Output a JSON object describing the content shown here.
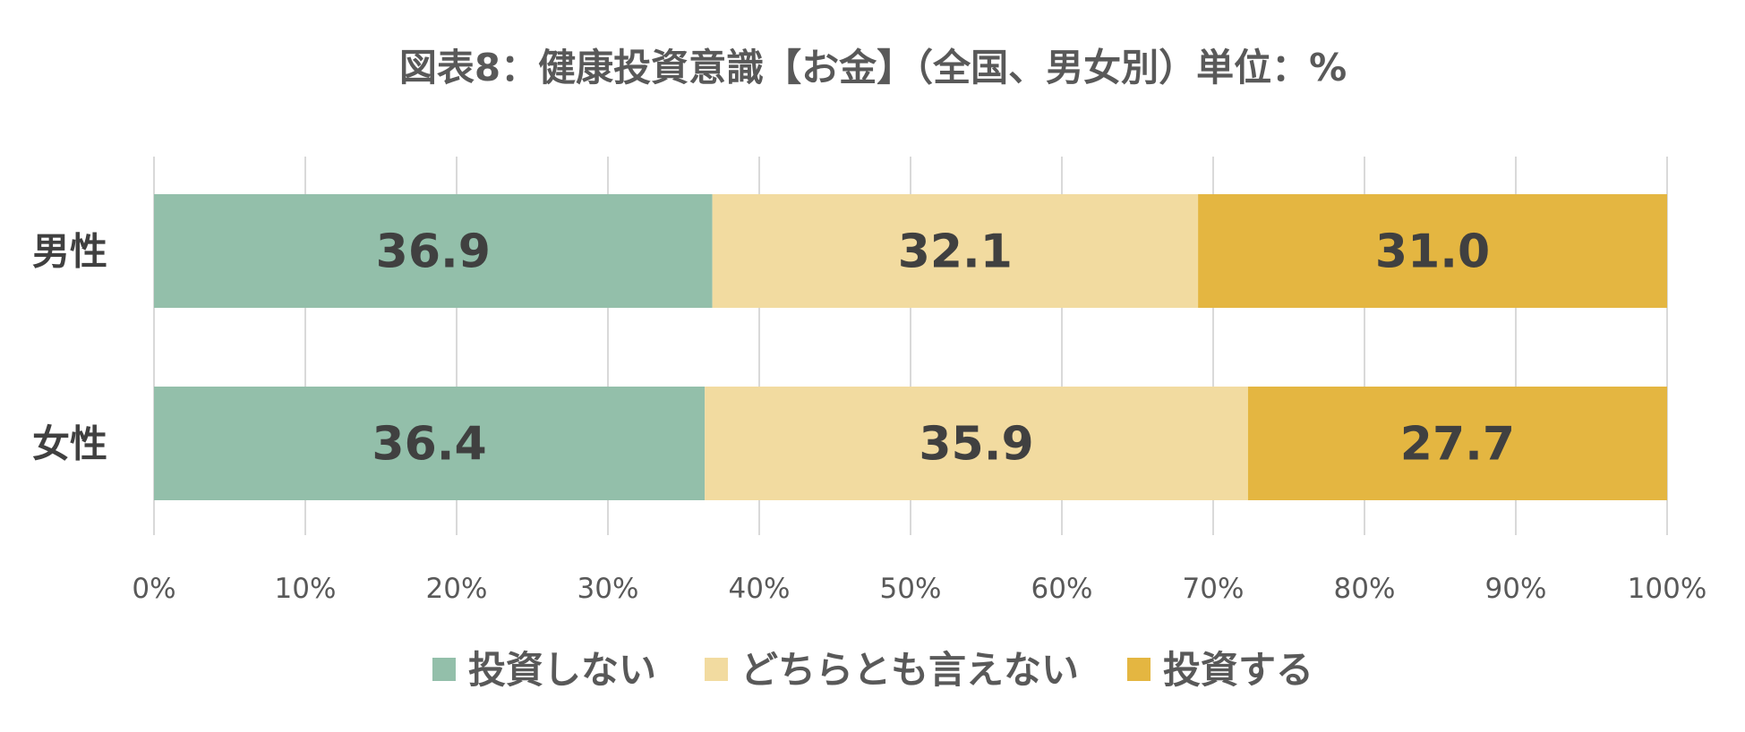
{
  "chart_data": {
    "type": "bar",
    "orientation": "horizontal",
    "stacked": "percent",
    "title": "図表8：健康投資意識【お金】（全国、男女別）単位：%",
    "categories": [
      "男性",
      "女性"
    ],
    "series": [
      {
        "name": "投資しない",
        "values": [
          36.9,
          36.4
        ],
        "color": "#93bfaa"
      },
      {
        "name": "どちらとも言えない",
        "values": [
          32.1,
          35.9
        ],
        "color": "#f2dba0"
      },
      {
        "name": "投資する",
        "values": [
          31.0,
          27.7
        ],
        "color": "#e4b641"
      }
    ],
    "xlim": [
      0,
      100
    ],
    "x_ticks": [
      "0%",
      "10%",
      "20%",
      "30%",
      "40%",
      "50%",
      "60%",
      "70%",
      "80%",
      "90%",
      "100%"
    ],
    "grid": true,
    "legend_position": "bottom",
    "data_labels": true
  }
}
